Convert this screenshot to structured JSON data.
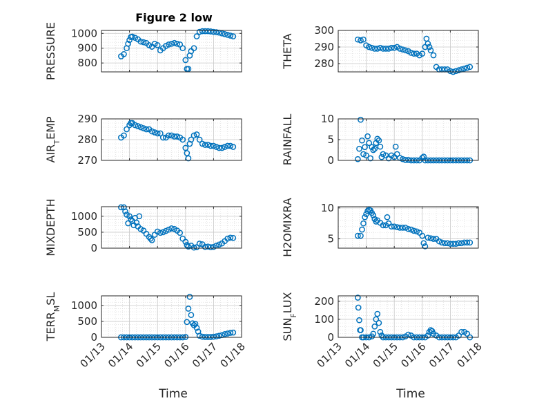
{
  "figure": {
    "title": "Figure 2 low",
    "xlabel": "Time",
    "x_tick_labels": [
      "01/13",
      "01/14",
      "01/15",
      "01/16",
      "01/17",
      "01/18"
    ]
  },
  "chart_data": [
    {
      "type": "scatter",
      "ylabel": "PRESSURE",
      "ylim": [
        740,
        1020
      ],
      "yticks": [
        800,
        900,
        1000
      ],
      "grid": true,
      "color": "#0072BD",
      "x": [
        13.7,
        13.8,
        13.9,
        13.95,
        14.0,
        14.05,
        14.1,
        14.2,
        14.3,
        14.4,
        14.5,
        14.6,
        14.7,
        14.8,
        14.9,
        15.0,
        15.1,
        15.2,
        15.3,
        15.4,
        15.5,
        15.6,
        15.7,
        15.8,
        15.9,
        16.0,
        16.05,
        16.1,
        16.15,
        16.2,
        16.3,
        16.4,
        16.5,
        16.6,
        16.7,
        16.8,
        16.9,
        17.0,
        17.1,
        17.2,
        17.3,
        17.4,
        17.5,
        17.6,
        17.7
      ],
      "y": [
        845,
        860,
        900,
        930,
        955,
        975,
        978,
        970,
        960,
        945,
        940,
        935,
        920,
        910,
        930,
        920,
        885,
        900,
        915,
        925,
        930,
        935,
        930,
        925,
        900,
        820,
        760,
        760,
        850,
        880,
        900,
        980,
        1010,
        1015,
        1015,
        1015,
        1013,
        1010,
        1008,
        1005,
        1000,
        995,
        990,
        985,
        980
      ]
    },
    {
      "type": "scatter",
      "ylabel": "THETA",
      "ylim": [
        275,
        300
      ],
      "yticks": [
        280,
        290,
        300
      ],
      "grid": true,
      "color": "#0072BD",
      "x": [
        13.7,
        13.8,
        13.9,
        14.0,
        14.1,
        14.2,
        14.3,
        14.4,
        14.5,
        14.6,
        14.7,
        14.8,
        14.9,
        15.0,
        15.1,
        15.2,
        15.3,
        15.4,
        15.5,
        15.6,
        15.7,
        15.8,
        15.9,
        16.0,
        16.1,
        16.15,
        16.2,
        16.25,
        16.3,
        16.4,
        16.5,
        16.6,
        16.7,
        16.8,
        16.9,
        17.0,
        17.1,
        17.2,
        17.3,
        17.4,
        17.5,
        17.6,
        17.7
      ],
      "y": [
        294.5,
        294,
        294.5,
        291,
        290,
        289.5,
        289,
        289,
        289.5,
        289,
        289,
        289,
        289.5,
        289.5,
        290,
        289,
        288.5,
        288,
        287.5,
        286.5,
        286,
        286,
        285,
        286,
        290,
        295,
        292,
        290,
        288,
        285,
        278,
        276.5,
        276.5,
        276.5,
        276.5,
        275.5,
        275,
        275.5,
        276,
        276.5,
        277,
        277.5,
        278
      ]
    },
    {
      "type": "scatter",
      "ylabel": "AIR_TEMP",
      "ylim": [
        270,
        290
      ],
      "yticks": [
        270,
        280,
        290
      ],
      "grid": true,
      "color": "#0072BD",
      "x": [
        13.7,
        13.8,
        13.9,
        14.0,
        14.05,
        14.1,
        14.2,
        14.3,
        14.4,
        14.5,
        14.6,
        14.7,
        14.8,
        14.9,
        15.0,
        15.1,
        15.2,
        15.3,
        15.4,
        15.5,
        15.6,
        15.7,
        15.8,
        15.9,
        16.0,
        16.05,
        16.1,
        16.15,
        16.2,
        16.3,
        16.4,
        16.5,
        16.6,
        16.7,
        16.8,
        16.9,
        17.0,
        17.1,
        17.2,
        17.3,
        17.4,
        17.5,
        17.6,
        17.7
      ],
      "y": [
        281,
        282,
        285,
        287,
        288,
        288,
        287,
        286.5,
        286,
        285.5,
        285,
        285,
        284,
        283.5,
        283,
        283,
        281,
        281,
        282,
        282,
        281.5,
        281.5,
        281,
        280,
        276,
        273.5,
        271,
        278,
        280,
        282,
        282.5,
        280,
        278,
        277.5,
        277.5,
        277,
        277,
        276.5,
        276,
        276,
        276.5,
        277,
        277,
        276.5
      ]
    },
    {
      "type": "scatter",
      "ylabel": "RAINFALL",
      "ylim": [
        0,
        10
      ],
      "yticks": [
        0,
        5,
        10
      ],
      "grid": true,
      "color": "#0072BD",
      "x": [
        13.7,
        13.75,
        13.8,
        13.85,
        13.9,
        13.95,
        14.0,
        14.05,
        14.1,
        14.15,
        14.2,
        14.25,
        14.3,
        14.35,
        14.4,
        14.45,
        14.5,
        14.55,
        14.6,
        14.7,
        14.8,
        14.9,
        15.0,
        15.05,
        15.1,
        15.2,
        15.3,
        15.4,
        15.5,
        15.6,
        15.7,
        15.8,
        15.9,
        16.0,
        16.05,
        16.1,
        16.2,
        16.3,
        16.4,
        16.5,
        16.6,
        16.7,
        16.8,
        16.9,
        17.0,
        17.1,
        17.2,
        17.3,
        17.4,
        17.5,
        17.6,
        17.7
      ],
      "y": [
        0.3,
        2.8,
        9.8,
        4.8,
        1.5,
        3.2,
        1.2,
        5.8,
        4.2,
        0.5,
        3.2,
        2.5,
        2.8,
        4.2,
        5.2,
        4.8,
        3.3,
        0.8,
        1.5,
        1.2,
        0.5,
        1.2,
        0.8,
        3.3,
        1.5,
        0.6,
        0.3,
        0.1,
        0.1,
        0,
        0,
        0,
        0,
        0.6,
        0.9,
        0,
        0,
        0,
        0,
        0,
        0,
        0,
        0,
        0,
        0,
        0,
        0,
        0,
        0,
        0,
        0,
        0
      ]
    },
    {
      "type": "scatter",
      "ylabel": "MIXDEPTH",
      "ylim": [
        0,
        1300
      ],
      "yticks": [
        0,
        500,
        1000
      ],
      "grid": true,
      "color": "#0072BD",
      "x": [
        13.7,
        13.8,
        13.85,
        13.9,
        13.95,
        14.0,
        14.05,
        14.1,
        14.15,
        14.2,
        14.25,
        14.3,
        14.35,
        14.4,
        14.5,
        14.6,
        14.7,
        14.75,
        14.8,
        14.9,
        15.0,
        15.1,
        15.2,
        15.3,
        15.4,
        15.5,
        15.6,
        15.7,
        15.8,
        15.9,
        16.0,
        16.05,
        16.1,
        16.2,
        16.3,
        16.4,
        16.5,
        16.6,
        16.7,
        16.8,
        16.9,
        17.0,
        17.1,
        17.2,
        17.3,
        17.4,
        17.5,
        17.6,
        17.7
      ],
      "y": [
        1280,
        1280,
        1150,
        1050,
        780,
        1000,
        900,
        850,
        720,
        950,
        800,
        680,
        1000,
        600,
        550,
        450,
        350,
        300,
        250,
        420,
        520,
        480,
        500,
        540,
        580,
        620,
        600,
        550,
        480,
        300,
        200,
        100,
        50,
        80,
        20,
        30,
        140,
        120,
        40,
        50,
        30,
        40,
        80,
        110,
        150,
        220,
        300,
        330,
        320
      ]
    },
    {
      "type": "scatter",
      "ylabel": "H2OMIXRA",
      "ylim": [
        3.5,
        10.2
      ],
      "yticks": [
        5,
        10
      ],
      "grid": true,
      "color": "#0072BD",
      "x": [
        13.7,
        13.8,
        13.85,
        13.9,
        13.95,
        14.0,
        14.05,
        14.1,
        14.15,
        14.2,
        14.25,
        14.3,
        14.35,
        14.4,
        14.5,
        14.6,
        14.7,
        14.75,
        14.8,
        14.9,
        15.0,
        15.1,
        15.2,
        15.3,
        15.4,
        15.5,
        15.6,
        15.7,
        15.8,
        15.9,
        16.0,
        16.05,
        16.1,
        16.2,
        16.3,
        16.4,
        16.5,
        16.6,
        16.7,
        16.8,
        16.9,
        17.0,
        17.1,
        17.2,
        17.3,
        17.4,
        17.5,
        17.6,
        17.7
      ],
      "y": [
        5.5,
        5.5,
        6.5,
        7.5,
        8.5,
        9,
        9.5,
        9.7,
        9.6,
        9.2,
        8.8,
        8.2,
        7.8,
        8,
        7.6,
        7.2,
        7.2,
        8.5,
        7.5,
        7,
        7,
        6.9,
        6.8,
        6.8,
        6.8,
        6.6,
        6.5,
        6.3,
        6.2,
        6,
        5.5,
        4.3,
        3.8,
        5.2,
        5.1,
        5,
        5,
        4.6,
        4.4,
        4.3,
        4.3,
        4.2,
        4.2,
        4.2,
        4.3,
        4.3,
        4.4,
        4.4,
        4.4
      ]
    },
    {
      "type": "scatter",
      "ylabel": "TERR_MSL",
      "ylim": [
        0,
        1300
      ],
      "yticks": [
        0,
        500,
        1000
      ],
      "grid": true,
      "color": "#0072BD",
      "x": [
        13.7,
        13.8,
        13.9,
        14.0,
        14.1,
        14.2,
        14.3,
        14.4,
        14.5,
        14.6,
        14.7,
        14.8,
        14.9,
        15.0,
        15.1,
        15.2,
        15.3,
        15.4,
        15.5,
        15.6,
        15.7,
        15.8,
        15.9,
        16.0,
        16.05,
        16.1,
        16.15,
        16.2,
        16.25,
        16.3,
        16.35,
        16.4,
        16.45,
        16.5,
        16.6,
        16.7,
        16.8,
        16.9,
        17.0,
        17.1,
        17.2,
        17.3,
        17.4,
        17.5,
        17.6,
        17.7
      ],
      "y": [
        0,
        0,
        0,
        0,
        0,
        0,
        0,
        0,
        0,
        0,
        0,
        0,
        0,
        0,
        0,
        0,
        0,
        0,
        0,
        0,
        0,
        0,
        0,
        10,
        480,
        900,
        1270,
        700,
        440,
        380,
        420,
        300,
        180,
        50,
        20,
        10,
        10,
        10,
        20,
        30,
        50,
        70,
        100,
        120,
        140,
        150
      ]
    },
    {
      "type": "scatter",
      "ylabel": "SUN_FLUX",
      "ylim": [
        0,
        230
      ],
      "yticks": [
        0,
        100,
        200
      ],
      "grid": true,
      "color": "#0072BD",
      "x": [
        13.7,
        13.72,
        13.75,
        13.78,
        13.8,
        13.85,
        13.9,
        14.0,
        14.1,
        14.2,
        14.25,
        14.3,
        14.35,
        14.4,
        14.45,
        14.5,
        14.55,
        14.6,
        14.7,
        14.8,
        14.9,
        15.0,
        15.1,
        15.2,
        15.3,
        15.4,
        15.5,
        15.6,
        15.7,
        15.8,
        15.9,
        16.0,
        16.1,
        16.2,
        16.25,
        16.3,
        16.35,
        16.4,
        16.5,
        16.6,
        16.7,
        16.8,
        16.9,
        17.0,
        17.1,
        17.2,
        17.3,
        17.4,
        17.5,
        17.6,
        17.7
      ],
      "y": [
        220,
        165,
        95,
        40,
        40,
        0,
        0,
        0,
        0,
        5,
        20,
        60,
        100,
        130,
        80,
        30,
        10,
        0,
        0,
        0,
        0,
        0,
        0,
        0,
        0,
        5,
        15,
        10,
        0,
        0,
        0,
        0,
        0,
        10,
        30,
        40,
        35,
        20,
        10,
        0,
        0,
        0,
        0,
        0,
        0,
        0,
        10,
        30,
        30,
        20,
        0
      ]
    }
  ]
}
